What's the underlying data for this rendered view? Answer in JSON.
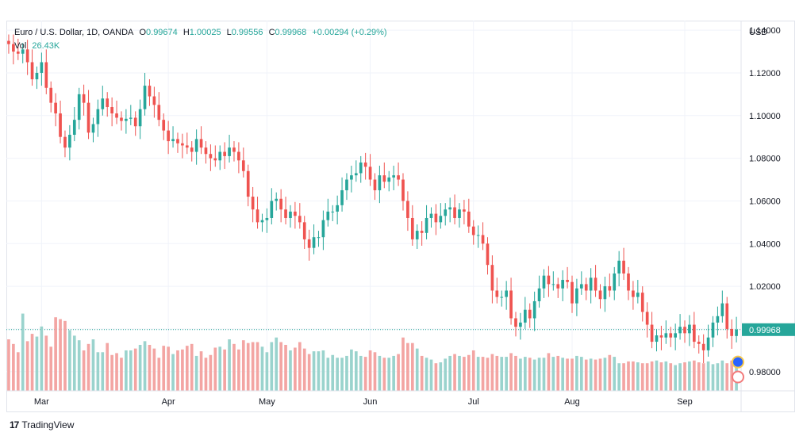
{
  "legend": {
    "symbol": "Euro / U.S. Dollar, 1D, OANDA",
    "o_label": "O",
    "o_value": "0.99674",
    "h_label": "H",
    "h_value": "1.00025",
    "l_label": "L",
    "l_value": "0.99556",
    "c_label": "C",
    "c_value": "0.99968",
    "change": "+0.00294 (+0.29%)",
    "vol_label": "Vol",
    "vol_value": "26.43K"
  },
  "branding": {
    "logo": "17",
    "name": "TradingView"
  },
  "colors": {
    "up": "#26a69a",
    "down": "#ef5350",
    "up_vol": "#9ad3cd",
    "down_vol": "#f3a5a3",
    "grid": "#f0f3fa",
    "axis_text": "#131722"
  },
  "chart_data": {
    "type": "candlestick",
    "symbol": "EURUSD",
    "currency": "USD",
    "y_ticks": [
      "1.14000",
      "1.12000",
      "1.10000",
      "1.08000",
      "1.06000",
      "1.04000",
      "1.02000",
      "1.00000",
      "0.98000"
    ],
    "ylim": [
      0.971,
      1.1445
    ],
    "x_ticks": [
      "Mar",
      "Apr",
      "May",
      "Jun",
      "Jul",
      "Aug",
      "Sep"
    ],
    "last_price": 0.99968,
    "grid": true,
    "start_close": 1.135,
    "closes": [
      1.1335,
      1.13,
      1.129,
      1.131,
      1.125,
      1.117,
      1.12,
      1.125,
      1.113,
      1.106,
      1.101,
      1.09,
      1.085,
      1.091,
      1.098,
      1.11,
      1.106,
      1.092,
      1.096,
      1.103,
      1.108,
      1.104,
      1.101,
      1.099,
      1.0975,
      1.0985,
      1.099,
      1.095,
      1.103,
      1.114,
      1.109,
      1.105,
      1.098,
      1.093,
      1.088,
      1.089,
      1.087,
      1.086,
      1.085,
      1.083,
      1.089,
      1.085,
      1.082,
      1.08,
      1.079,
      1.083,
      1.081,
      1.085,
      1.083,
      1.079,
      1.074,
      1.062,
      1.056,
      1.05,
      1.051,
      1.052,
      1.06,
      1.061,
      1.056,
      1.052,
      1.055,
      1.053,
      1.05,
      1.042,
      1.038,
      1.043,
      1.043,
      1.051,
      1.055,
      1.055,
      1.058,
      1.065,
      1.07,
      1.072,
      1.073,
      1.078,
      1.076,
      1.07,
      1.065,
      1.072,
      1.069,
      1.071,
      1.072,
      1.07,
      1.06,
      1.052,
      1.042,
      1.046,
      1.045,
      1.052,
      1.054,
      1.05,
      1.053,
      1.056,
      1.057,
      1.052,
      1.056,
      1.055,
      1.048,
      1.044,
      1.044,
      1.04,
      1.03,
      1.018,
      1.015,
      1.015,
      1.018,
      1.005,
      1.001,
      1.003,
      1.009,
      1.005,
      1.013,
      1.019,
      1.025,
      1.021,
      1.021,
      1.019,
      1.023,
      1.022,
      1.012,
      1.019,
      1.021,
      1.018,
      1.024,
      1.018,
      1.014,
      1.02,
      1.018,
      1.026,
      1.032,
      1.026,
      1.018,
      1.015,
      1.017,
      1.008,
      1.002,
      0.994,
      0.997,
      0.996,
      0.998,
      0.996,
      0.998,
      1.001,
      0.998,
      1.002,
      0.994,
      0.993,
      0.99,
      0.996,
      1.003,
      1.006,
      1.012,
      1.0,
      0.9967,
      0.99968
    ],
    "volumes": [
      0.56,
      0.51,
      0.42,
      0.84,
      0.54,
      0.62,
      0.59,
      0.7,
      0.6,
      0.48,
      0.8,
      0.78,
      0.76,
      0.66,
      0.6,
      0.55,
      0.44,
      0.51,
      0.56,
      0.42,
      0.42,
      0.52,
      0.39,
      0.41,
      0.36,
      0.44,
      0.44,
      0.46,
      0.5,
      0.54,
      0.5,
      0.46,
      0.36,
      0.49,
      0.48,
      0.4,
      0.44,
      0.45,
      0.49,
      0.51,
      0.38,
      0.43,
      0.36,
      0.39,
      0.47,
      0.48,
      0.45,
      0.56,
      0.51,
      0.45,
      0.55,
      0.52,
      0.53,
      0.53,
      0.48,
      0.42,
      0.53,
      0.58,
      0.53,
      0.5,
      0.44,
      0.47,
      0.53,
      0.46,
      0.4,
      0.43,
      0.43,
      0.44,
      0.36,
      0.39,
      0.36,
      0.36,
      0.38,
      0.45,
      0.43,
      0.38,
      0.37,
      0.44,
      0.42,
      0.38,
      0.36,
      0.36,
      0.38,
      0.4,
      0.58,
      0.52,
      0.52,
      0.46,
      0.38,
      0.36,
      0.34,
      0.3,
      0.31,
      0.35,
      0.38,
      0.4,
      0.38,
      0.37,
      0.39,
      0.44,
      0.37,
      0.37,
      0.36,
      0.4,
      0.38,
      0.37,
      0.37,
      0.41,
      0.38,
      0.35,
      0.37,
      0.36,
      0.34,
      0.36,
      0.36,
      0.41,
      0.37,
      0.38,
      0.36,
      0.35,
      0.35,
      0.38,
      0.37,
      0.34,
      0.35,
      0.34,
      0.35,
      0.36,
      0.39,
      0.37,
      0.3,
      0.3,
      0.32,
      0.32,
      0.31,
      0.3,
      0.3,
      0.32,
      0.33,
      0.31,
      0.32,
      0.3,
      0.28,
      0.3,
      0.31,
      0.32,
      0.33,
      0.31,
      0.3,
      0.32,
      0.29,
      0.3,
      0.33,
      0.3,
      0.33,
      0.34
    ]
  }
}
